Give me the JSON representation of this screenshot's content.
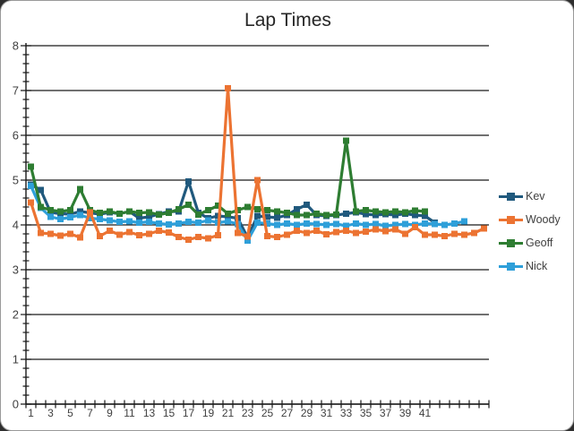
{
  "chart_data": {
    "type": "line",
    "title": "Lap Times",
    "xlabel": "",
    "ylabel": "",
    "ylim": [
      0,
      8
    ],
    "y_ticks": [
      0,
      1,
      2,
      3,
      4,
      5,
      6,
      7,
      8
    ],
    "y_minor_step": 0.2,
    "x_categories_total": 47,
    "x_tick_labels": [
      "1",
      "3",
      "5",
      "7",
      "9",
      "11",
      "13",
      "15",
      "17",
      "19",
      "21",
      "23",
      "25",
      "27",
      "29",
      "31",
      "33",
      "35",
      "37",
      "39",
      "41"
    ],
    "x_label_step": 2,
    "grid": "horizontal-major",
    "legend_position": "right",
    "axis_text_color": "#404040",
    "grid_color": "#1a1a1a",
    "marker_shape": "square",
    "series": [
      {
        "name": "Kev",
        "color": "#20597D",
        "values": [
          4.9,
          4.78,
          4.28,
          4.25,
          4.24,
          4.3,
          4.27,
          4.24,
          4.28,
          4.25,
          4.3,
          4.15,
          4.18,
          4.24,
          4.3,
          4.3,
          4.97,
          4.27,
          4.15,
          4.2,
          4.18,
          4.15,
          3.72,
          4.2,
          4.18,
          4.16,
          4.22,
          4.35,
          4.45,
          4.22,
          4.2,
          4.22,
          4.25,
          4.28,
          4.24,
          4.22,
          4.24,
          4.22,
          4.25,
          4.22,
          4.2,
          4.05
        ]
      },
      {
        "name": "Woody",
        "color": "#EC7332",
        "values": [
          4.5,
          3.82,
          3.8,
          3.76,
          3.8,
          3.72,
          4.28,
          3.75,
          3.87,
          3.78,
          3.84,
          3.77,
          3.8,
          3.87,
          3.83,
          3.73,
          3.67,
          3.73,
          3.7,
          3.77,
          7.05,
          3.82,
          3.74,
          5.0,
          3.75,
          3.73,
          3.78,
          3.87,
          3.82,
          3.87,
          3.79,
          3.84,
          3.87,
          3.82,
          3.85,
          3.9,
          3.86,
          3.9,
          3.8,
          3.95,
          3.78,
          3.78,
          3.75,
          3.8,
          3.78,
          3.82,
          3.92
        ]
      },
      {
        "name": "Geoff",
        "color": "#2E7D32",
        "values": [
          5.3,
          4.4,
          4.33,
          4.3,
          4.33,
          4.8,
          4.33,
          4.27,
          4.3,
          4.25,
          4.3,
          4.27,
          4.28,
          4.23,
          4.27,
          4.35,
          4.45,
          4.23,
          4.33,
          4.43,
          4.25,
          4.33,
          4.4,
          4.35,
          4.33,
          4.3,
          4.27,
          4.22,
          4.22,
          4.25,
          4.22,
          4.23,
          5.88,
          4.3,
          4.33,
          4.3,
          4.28,
          4.3,
          4.28,
          4.32,
          4.3
        ]
      },
      {
        "name": "Nick",
        "color": "#2E9FD9",
        "values": [
          4.87,
          4.38,
          4.18,
          4.13,
          4.17,
          4.22,
          4.15,
          4.13,
          4.1,
          4.07,
          4.08,
          4.05,
          4.07,
          4.03,
          4.01,
          4.03,
          4.07,
          4.05,
          4.1,
          4.05,
          4.08,
          4.02,
          3.65,
          4.05,
          4.03,
          4.0,
          4.03,
          4.0,
          4.03,
          4.02,
          4.0,
          4.02,
          3.98,
          4.03,
          4.0,
          4.02,
          3.98,
          4.0,
          4.02,
          4.0,
          4.03,
          4.02,
          4.0,
          4.03,
          4.08
        ]
      }
    ]
  }
}
